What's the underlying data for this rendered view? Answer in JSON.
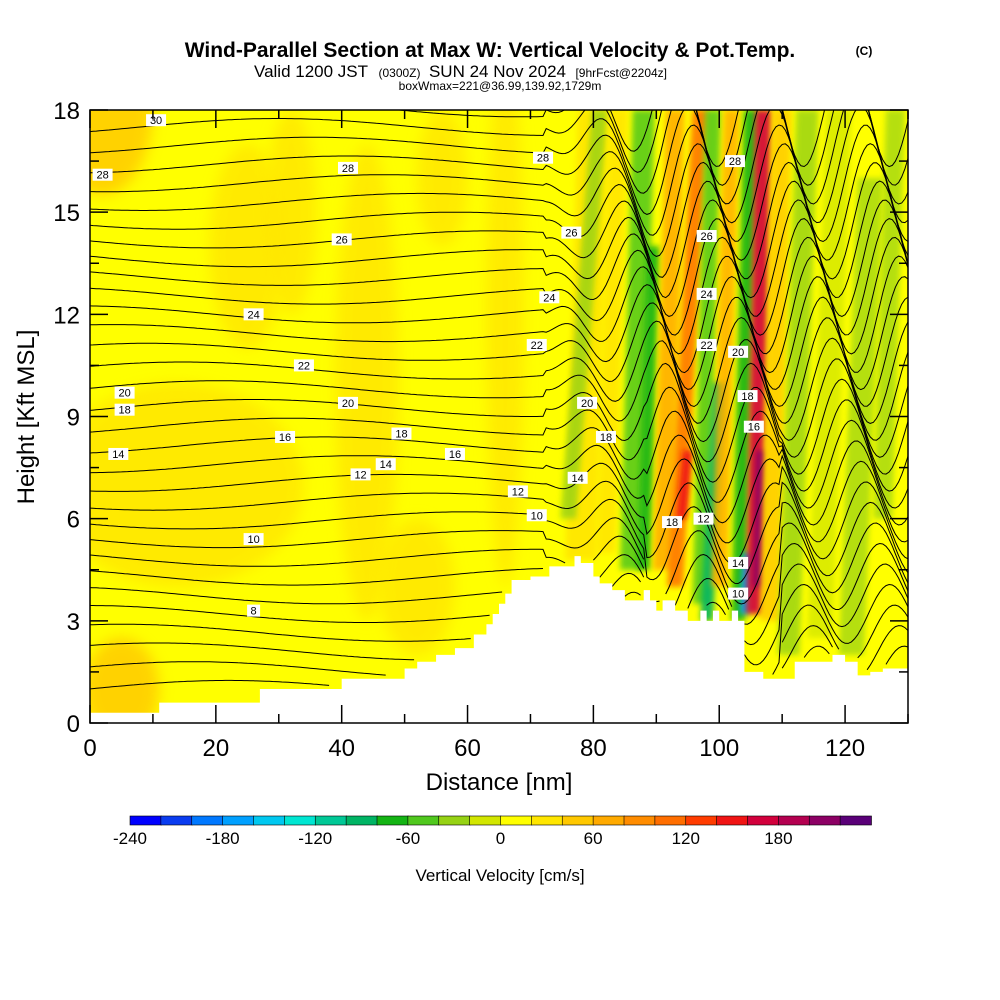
{
  "header": {
    "title": "Wind-Parallel Section at Max W: Vertical Velocity & Pot.Temp.",
    "title_mark": "(C)",
    "valid_main": "Valid 1200 JST",
    "valid_utc": "(0300Z)",
    "valid_date": "SUN 24 Nov 2024",
    "forecast": "[9hrFcst@2204z]",
    "boxwmax": "boxWmax=221@36.99,139.92,1729m"
  },
  "chart_data": {
    "type": "heatmap",
    "xlabel": "Distance [nm]",
    "ylabel": "Height [Kft MSL]",
    "xlim": [
      0,
      130
    ],
    "ylim": [
      0,
      18
    ],
    "xticks": [
      0,
      20,
      40,
      60,
      80,
      100,
      120
    ],
    "yticks": [
      0,
      3,
      6,
      9,
      12,
      15,
      18
    ],
    "terrain_profile": {
      "x": [
        0,
        11,
        11,
        27,
        27,
        40,
        40,
        50,
        50,
        52,
        52,
        55,
        55,
        58,
        58,
        61,
        61,
        63,
        63,
        64,
        64,
        65,
        65,
        66,
        66,
        67,
        67,
        70,
        70,
        73,
        73,
        77,
        77,
        78,
        78,
        80,
        80,
        81,
        81,
        83,
        83,
        85,
        85,
        88,
        88,
        89,
        89,
        90,
        90,
        91,
        91,
        93,
        93,
        95,
        95,
        97,
        97,
        98,
        98,
        99,
        99,
        100,
        100,
        102,
        102,
        103,
        103,
        104,
        104,
        107,
        107,
        112,
        112,
        118,
        118,
        120,
        120,
        122,
        122,
        124,
        124,
        126,
        126,
        130
      ],
      "y": [
        0.3,
        0.3,
        0.6,
        0.6,
        1.0,
        1.0,
        1.3,
        1.3,
        1.6,
        1.6,
        1.8,
        1.8,
        2.0,
        2.0,
        2.2,
        2.2,
        2.6,
        2.6,
        2.9,
        2.9,
        3.2,
        3.2,
        3.5,
        3.5,
        3.8,
        3.8,
        4.2,
        4.2,
        4.3,
        4.3,
        4.6,
        4.6,
        4.9,
        4.9,
        4.7,
        4.7,
        4.3,
        4.3,
        4.1,
        4.1,
        3.9,
        3.9,
        3.6,
        3.6,
        3.9,
        3.9,
        3.6,
        3.6,
        3.3,
        3.3,
        3.6,
        3.6,
        3.3,
        3.3,
        3.0,
        3.0,
        3.3,
        3.3,
        3.0,
        3.0,
        3.3,
        3.3,
        3.0,
        3.0,
        3.3,
        3.3,
        3.0,
        3.0,
        1.5,
        1.5,
        1.3,
        1.3,
        1.8,
        1.8,
        2.0,
        2.0,
        1.8,
        1.8,
        1.4,
        1.4,
        1.5,
        1.5,
        1.6,
        1.6
      ]
    },
    "colorbar": {
      "label": "Vertical Velocity [cm/s]",
      "tick_labels": [
        "-240",
        "-180",
        "-120",
        "-60",
        "0",
        "60",
        "120",
        "180"
      ],
      "tick_values": [
        -240,
        -180,
        -120,
        -60,
        0,
        60,
        120,
        180
      ],
      "bins": [
        -240,
        -220,
        -200,
        -180,
        -160,
        -140,
        -120,
        -100,
        -80,
        -60,
        -40,
        -20,
        0,
        20,
        40,
        60,
        80,
        100,
        120,
        140,
        160,
        180,
        200,
        220
      ],
      "colors": [
        "#0000ff",
        "#0a3cf0",
        "#0078ff",
        "#00a0ff",
        "#00c8f0",
        "#00e6d2",
        "#00c896",
        "#00b464",
        "#14b414",
        "#50c81e",
        "#96d214",
        "#d2e600",
        "#ffff00",
        "#ffe600",
        "#ffc800",
        "#ffaa00",
        "#ff8c00",
        "#ff6e00",
        "#ff3c00",
        "#f01414",
        "#d2003c",
        "#b40050",
        "#8c0064",
        "#5a0078"
      ]
    },
    "theta_contours": [
      {
        "label": "30",
        "label_x": 10.5,
        "label_y": 17.7
      },
      {
        "label": "28",
        "label_x": 2,
        "label_y": 16.1
      },
      {
        "label": "28",
        "label_x": 41,
        "label_y": 16.3
      },
      {
        "label": "28",
        "label_x": 72,
        "label_y": 16.6
      },
      {
        "label": "28",
        "label_x": 102.5,
        "label_y": 16.5
      },
      {
        "label": "26",
        "label_x": 40,
        "label_y": 14.2
      },
      {
        "label": "26",
        "label_x": 76.5,
        "label_y": 14.4
      },
      {
        "label": "26",
        "label_x": 98,
        "label_y": 14.3
      },
      {
        "label": "24",
        "label_x": 26,
        "label_y": 12.0
      },
      {
        "label": "24",
        "label_x": 73,
        "label_y": 12.5
      },
      {
        "label": "24",
        "label_x": 98,
        "label_y": 12.6
      },
      {
        "label": "22",
        "label_x": 34,
        "label_y": 10.5
      },
      {
        "label": "22",
        "label_x": 71,
        "label_y": 11.1
      },
      {
        "label": "22",
        "label_x": 98,
        "label_y": 11.1
      },
      {
        "label": "20",
        "label_x": 5.5,
        "label_y": 9.7
      },
      {
        "label": "20",
        "label_x": 41,
        "label_y": 9.4
      },
      {
        "label": "20",
        "label_x": 79,
        "label_y": 9.4
      },
      {
        "label": "20",
        "label_x": 103,
        "label_y": 10.9
      },
      {
        "label": "18",
        "label_x": 5.5,
        "label_y": 9.2
      },
      {
        "label": "18",
        "label_x": 49.5,
        "label_y": 8.5
      },
      {
        "label": "18",
        "label_x": 82,
        "label_y": 8.4
      },
      {
        "label": "18",
        "label_x": 104.5,
        "label_y": 9.6
      },
      {
        "label": "16",
        "label_x": 31,
        "label_y": 8.4
      },
      {
        "label": "16",
        "label_x": 58,
        "label_y": 7.9
      },
      {
        "label": "16",
        "label_x": 105.5,
        "label_y": 8.7
      },
      {
        "label": "14",
        "label_x": 4.5,
        "label_y": 7.9
      },
      {
        "label": "14",
        "label_x": 47,
        "label_y": 7.6
      },
      {
        "label": "14",
        "label_x": 77.5,
        "label_y": 7.2
      },
      {
        "label": "14",
        "label_x": 103,
        "label_y": 4.7
      },
      {
        "label": "12",
        "label_x": 43,
        "label_y": 7.3
      },
      {
        "label": "12",
        "label_x": 68,
        "label_y": 6.8
      },
      {
        "label": "12",
        "label_x": 97.5,
        "label_y": 6.0
      },
      {
        "label": "10",
        "label_x": 26,
        "label_y": 5.4
      },
      {
        "label": "10",
        "label_x": 71,
        "label_y": 6.1
      },
      {
        "label": "10",
        "label_x": 103,
        "label_y": 3.8
      },
      {
        "label": "8",
        "label_x": 26,
        "label_y": 3.3
      },
      {
        "label": "18",
        "label_x": 92.5,
        "label_y": 5.9
      }
    ]
  }
}
